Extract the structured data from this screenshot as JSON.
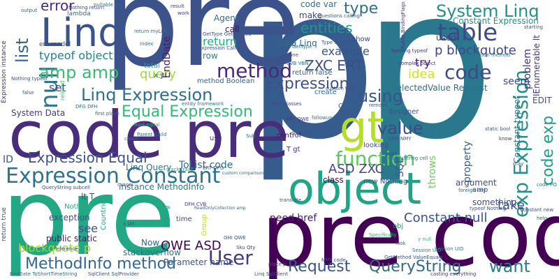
{
  "words": [
    {
      "text": "p",
      "color": "#365c8d"
    },
    {
      "text": "p",
      "color": "#2a788e"
    },
    {
      "text": "pre",
      "color": "#3b528b"
    },
    {
      "text": "pre",
      "color": "#22a884"
    },
    {
      "text": "pre code",
      "color": "#440154"
    },
    {
      "text": "code pre",
      "color": "#472d7b"
    },
    {
      "text": "object",
      "color": "#20a486"
    },
    {
      "text": "gt",
      "color": "#b5de2b"
    },
    {
      "text": "Linq",
      "color": "#3b528b"
    },
    {
      "text": "Expression Constant",
      "color": "#2c728e"
    },
    {
      "text": "table",
      "color": "#3e4989"
    },
    {
      "text": "System Linq",
      "color": "#21918c"
    },
    {
      "text": "method",
      "color": "#482878"
    },
    {
      "text": "code",
      "color": "#3e4a89"
    },
    {
      "text": "MethodInfo method",
      "color": "#31688e"
    },
    {
      "text": "User",
      "color": "#443983"
    },
    {
      "text": "Request",
      "color": "#39568c"
    },
    {
      "text": "QueryString",
      "color": "#306a8e"
    },
    {
      "text": "want",
      "color": "#277f8e"
    },
    {
      "text": "Linq Expression",
      "color": "#2d708e"
    },
    {
      "text": "Equal Expression",
      "color": "#35b779"
    },
    {
      "text": "Expression Equal",
      "color": "#3b528b"
    },
    {
      "text": "function",
      "color": "#5ec962"
    },
    {
      "text": "value",
      "color": "#3e4989"
    },
    {
      "text": "Expression",
      "color": "#3b528b"
    },
    {
      "text": "exp Expression",
      "color": "#21918c"
    },
    {
      "text": "code exp",
      "color": "#1f9e89"
    },
    {
      "text": "null",
      "color": "#2a788e"
    },
    {
      "text": "list",
      "color": "#33638d"
    },
    {
      "text": "amp amp",
      "color": "#3aba76"
    },
    {
      "text": "typeof object",
      "color": "#26828e"
    },
    {
      "text": "error",
      "color": "#472c7a"
    },
    {
      "text": "type",
      "color": "#2d708e"
    },
    {
      "text": "entities",
      "color": "#1f968b"
    },
    {
      "text": "using",
      "color": "#3b528b"
    },
    {
      "text": "ZXC ERT",
      "color": "#3d4d8a"
    },
    {
      "text": "ASD ZXC",
      "color": "#404688"
    },
    {
      "text": "QWE ASD",
      "color": "#440154"
    },
    {
      "text": "blockquote p",
      "color": "#9dd93b"
    },
    {
      "text": "p blockquote",
      "color": "#3e4989"
    },
    {
      "text": "Constant null",
      "color": "#3b528b"
    },
    {
      "text": "query",
      "color": "#a2da37"
    },
    {
      "text": "example",
      "color": "#3b528b"
    },
    {
      "text": "return",
      "color": "#25ac82"
    },
    {
      "text": "idea",
      "color": "#d2e21b"
    },
    {
      "text": "try",
      "color": "#481f70"
    },
    {
      "text": "set",
      "color": "#3a548c"
    },
    {
      "text": "call",
      "color": "#471063"
    },
    {
      "text": "Agent",
      "color": "#2c728e"
    },
    {
      "text": "make",
      "color": "#404387"
    },
    {
      "text": "code var",
      "color": "#2d718e"
    },
    {
      "text": "SQL",
      "color": "#38598c"
    },
    {
      "text": "throws",
      "color": "#6ccd5a"
    },
    {
      "text": "class",
      "color": "#46075a"
    },
    {
      "text": "need href",
      "color": "#481a6c"
    },
    {
      "text": "ToList code",
      "color": "#2e6d8e"
    },
    {
      "text": "Linq Query",
      "color": "#2a768e"
    },
    {
      "text": "ID",
      "color": "#3c4f8a"
    },
    {
      "text": "EndDate",
      "color": "#481c6e"
    },
    {
      "text": "property",
      "color": "#355f8d"
    },
    {
      "text": "argument",
      "color": "#3e4989"
    },
    {
      "text": "take",
      "color": "#3b518b"
    },
    {
      "text": "something",
      "color": "#3b528b"
    },
    {
      "text": "seem",
      "color": "#3e4c8a"
    },
    {
      "text": "problem",
      "color": "#46327e"
    },
    {
      "text": "Constant Expression",
      "color": "#21918c"
    },
    {
      "text": "used",
      "color": "#424086"
    },
    {
      "text": "IEnumerable lt",
      "color": "#453882"
    },
    {
      "text": "Constant typeof",
      "color": "#29798e"
    },
    {
      "text": "EDIT",
      "color": "#3b528b"
    },
    {
      "text": "Data Linq",
      "color": "#31688e"
    },
    {
      "text": "show",
      "color": "#3f4788"
    },
    {
      "text": "row",
      "color": "#23898e"
    },
    {
      "text": "total",
      "color": "#1fa188"
    },
    {
      "text": "x y",
      "color": "#375b8d"
    },
    {
      "text": "method Boolean",
      "color": "#34618d"
    },
    {
      "text": "return false",
      "color": "#35608d"
    },
    {
      "text": "Order",
      "color": "#33638d"
    },
    {
      "text": "create",
      "color": "#2e6e8e"
    },
    {
      "text": "designer",
      "color": "#3b518b"
    },
    {
      "text": "SelectedValue Request",
      "color": "#2d708e"
    },
    {
      "text": "System Data",
      "color": "#443a83"
    },
    {
      "text": "instance MethodInfo",
      "color": "#2a788e"
    },
    {
      "text": "lt T",
      "color": "#3e4989"
    },
    {
      "text": "Nothing",
      "color": "#29af7f"
    },
    {
      "text": "exception",
      "color": "#3d4d8a"
    },
    {
      "text": "see",
      "color": "#3b528b"
    },
    {
      "text": "public static",
      "color": "#481769"
    },
    {
      "text": "Now",
      "color": "#34618d"
    },
    {
      "text": "stackoverflow",
      "color": "#2c738e"
    },
    {
      "text": "Parameter name",
      "color": "#39568c"
    },
    {
      "text": "time",
      "color": "#3e4a89"
    },
    {
      "text": "trying",
      "color": "#20a386"
    },
    {
      "text": "Group",
      "color": "#b8de29"
    },
    {
      "text": "Countries",
      "color": "#22a785"
    },
    {
      "text": "control",
      "color": "#481467"
    },
    {
      "text": "T gt",
      "color": "#46337f"
    },
    {
      "text": "looking",
      "color": "#3b528b"
    },
    {
      "text": "new Nothing",
      "color": "#3d4e8a"
    },
    {
      "text": "use",
      "color": "#46327e"
    },
    {
      "text": "obj",
      "color": "#21918c"
    },
    {
      "text": "amp",
      "color": "#3e4989"
    },
    {
      "text": "lambda",
      "color": "#2c728e"
    },
    {
      "text": "em model",
      "color": "#3b528b"
    },
    {
      "text": "related",
      "color": "#3aba76"
    },
    {
      "text": "Expression instance",
      "color": "#472d7b"
    },
    {
      "text": "return true",
      "color": "#3e4989"
    },
    {
      "text": "output",
      "color": "#31688e"
    },
    {
      "text": "result",
      "color": "#443983"
    },
    {
      "text": "questions calling",
      "color": "#38598c"
    },
    {
      "text": "Index",
      "color": "#2d708e"
    },
    {
      "text": "Expression Call",
      "color": "#3b528b"
    },
    {
      "text": "entity framework",
      "color": "#2a788e"
    },
    {
      "text": "custom type",
      "color": "#3b528b"
    },
    {
      "text": "first place",
      "color": "#31688e"
    },
    {
      "text": "bool equal",
      "color": "#35b779"
    },
    {
      "text": "Parent Child",
      "color": "#2c728e"
    },
    {
      "text": "stack trace",
      "color": "#22a884"
    },
    {
      "text": "ERT DFG",
      "color": "#3b528b"
    },
    {
      "text": "QueryString subcell",
      "color": "#3e4989"
    },
    {
      "text": "DFH CVB",
      "color": "#443983"
    },
    {
      "text": "ReadOnlyCollection amp",
      "color": "#31688e"
    },
    {
      "text": "translate",
      "color": "#38598c"
    },
    {
      "text": "GHI QWE",
      "color": "#3b528b"
    },
    {
      "text": "Sku Qty",
      "color": "#443983"
    },
    {
      "text": "Session UID",
      "color": "#2a788e"
    },
    {
      "text": "EndDate ToShortTimeString",
      "color": "#31688e"
    },
    {
      "text": "SqlClient SqlProvider",
      "color": "#3b528b"
    },
    {
      "text": "Linq SqlClient",
      "color": "#3e4989"
    },
    {
      "text": "y null",
      "color": "#35b779"
    },
    {
      "text": "QueryString cell",
      "color": "#2c728e"
    },
    {
      "text": "duplicate",
      "color": "#3b528b"
    },
    {
      "text": "custom comparison",
      "color": "#31688e"
    },
    {
      "text": "ERT QWE",
      "color": "#443983"
    },
    {
      "text": "VBN NMY",
      "color": "#3b528b"
    },
    {
      "text": "CVB VBN",
      "color": "#2c728e"
    },
    {
      "text": "NET classes",
      "color": "#3e4989"
    },
    {
      "text": "remove",
      "color": "#38598c"
    },
    {
      "text": "followup p",
      "color": "#31688e"
    },
    {
      "text": "static bool",
      "color": "#3b528b"
    },
    {
      "text": "comparison method",
      "color": "#2a788e"
    },
    {
      "text": "complex object",
      "color": "#443983"
    },
    {
      "text": "Nothing typeof",
      "color": "#3b528b"
    },
    {
      "text": "Nothing return",
      "color": "#3e4989"
    },
    {
      "text": "nullable int",
      "color": "#31688e"
    },
    {
      "text": "return myList",
      "color": "#2c728e"
    },
    {
      "text": "GetType GetMethod",
      "color": "#3b528b"
    },
    {
      "text": "Public BindingFlags",
      "color": "#443983"
    },
    {
      "text": "typeof Nothing",
      "color": "#3b528b"
    },
    {
      "text": "Constant new",
      "color": "#3e4989"
    },
    {
      "text": "help",
      "color": "#38598c"
    },
    {
      "text": "foreign key",
      "color": "#31688e"
    },
    {
      "text": "starting",
      "color": "#3b528b"
    },
    {
      "text": "code PO",
      "color": "#2c728e"
    },
    {
      "text": "know",
      "color": "#443983"
    },
    {
      "text": "may",
      "color": "#3b528b"
    },
    {
      "text": "start",
      "color": "#3e4989"
    },
    {
      "text": "Session UID",
      "color": "#2a788e"
    },
    {
      "text": "look",
      "color": "#31688e"
    },
    {
      "text": "GetMethod ValueEquals",
      "color": "#3b528b"
    },
    {
      "text": "casting everything",
      "color": "#443983"
    },
    {
      "text": "place p",
      "color": "#3b528b"
    },
    {
      "text": "NMY code",
      "color": "#3e4989"
    },
    {
      "text": "Specifically",
      "color": "#35b779"
    },
    {
      "text": "Sub",
      "color": "#31688e"
    },
    {
      "text": "work",
      "color": "#443983"
    },
    {
      "text": "range",
      "color": "#3b528b"
    },
    {
      "text": "count",
      "color": "#2c728e"
    },
    {
      "text": "reference",
      "color": "#3e4989"
    },
    {
      "text": "Type System",
      "color": "#3b528b"
    },
    {
      "text": "DFG DFH",
      "color": "#31688e"
    },
    {
      "text": "Nothing typeof",
      "color": "#443983"
    },
    {
      "text": "false",
      "color": "#3b528b"
    },
    {
      "text": "GetType",
      "color": "#2c728e"
    },
    {
      "text": "one",
      "color": "#3e4989"
    },
    {
      "text": "x Uri",
      "color": "#3b528b"
    }
  ]
}
